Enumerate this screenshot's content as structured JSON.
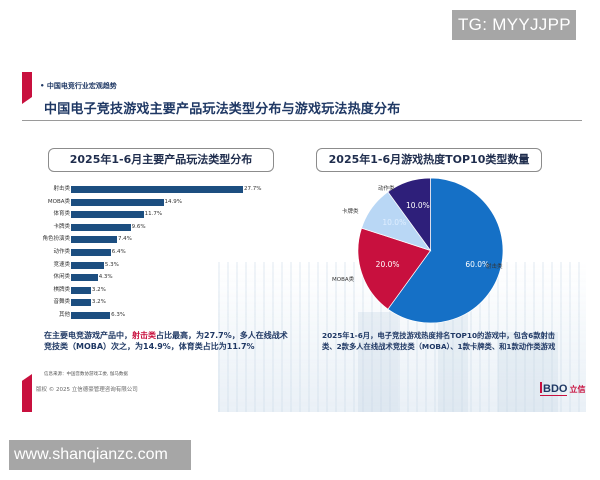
{
  "watermarks": {
    "top": "TG: MYYJJPP",
    "bottom": "www.shanqianzc.com"
  },
  "header": {
    "section_tag": "• 中国电竞行业宏观趋势",
    "title": "中国电子竞技游戏主要产品玩法类型分布与游戏玩法热度分布"
  },
  "left_panel": {
    "title": "2025年1-6月主要产品玩法类型分布",
    "note_pre": "在主要电竞游戏产品中，",
    "note_highlight": "射击类",
    "note_post": "占比最高，为27.7%，多人在线战术竞技类（MOBA）次之，为14.9%，体育类占比为11.7%",
    "source": "信息来源：中国音数协游戏工委, 伽马数据",
    "copyright": "版权 © 2025 立信德豪管理咨询有限公司"
  },
  "right_panel": {
    "title": "2025年1-6月游戏热度TOP10类型数量",
    "note": "2025年1-6月，电子竞技游戏热度排名TOP10的游戏中，包含6款射击类、2款多人在线战术竞技类（MOBA）、1款卡牌类、和1款动作类游戏"
  },
  "logo": {
    "text": "BDO",
    "cn": "立信"
  },
  "colors": {
    "bar": "#1c4e80",
    "accent": "#c8103e",
    "title": "#1f3864",
    "pie_shooting": "#1570c6",
    "pie_moba": "#c8103e",
    "pie_card": "#b9d7f5",
    "pie_action": "#2e1f7a"
  },
  "chart_data": [
    {
      "type": "bar",
      "orientation": "horizontal",
      "title": "2025年1-6月主要产品玩法类型分布",
      "categories": [
        "射击类",
        "MOBA类",
        "体育类",
        "卡牌类",
        "角色扮演类",
        "动作类",
        "竞速类",
        "休闲类",
        "棋牌类",
        "音舞类",
        "其他"
      ],
      "values": [
        27.7,
        14.9,
        11.7,
        9.6,
        7.4,
        6.4,
        5.3,
        4.3,
        3.2,
        3.2,
        6.3
      ],
      "value_labels": [
        "27.7%",
        "14.9%",
        "11.7%",
        "9.6%",
        "7.4%",
        "6.4%",
        "5.3%",
        "4.3%",
        "3.2%",
        "3.2%",
        "6.3%"
      ],
      "unit": "%",
      "xlabel": "",
      "ylabel": "",
      "grid": false
    },
    {
      "type": "pie",
      "title": "2025年1-6月游戏热度TOP10类型数量",
      "categories": [
        "射击类",
        "MOBA类",
        "卡牌类",
        "动作类"
      ],
      "values": [
        60.0,
        20.0,
        10.0,
        10.0
      ],
      "value_labels": [
        "60.0%",
        "20.0%",
        "10.0%",
        "10.0%"
      ],
      "counts": [
        6,
        2,
        1,
        1
      ],
      "colors": [
        "#1570c6",
        "#c8103e",
        "#b9d7f5",
        "#2e1f7a"
      ]
    }
  ]
}
